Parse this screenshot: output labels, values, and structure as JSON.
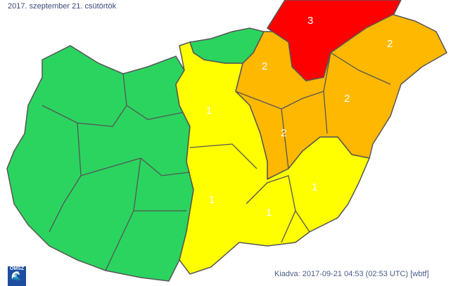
{
  "header": {
    "date": "2017. szeptember 21. csütörtök"
  },
  "footer": {
    "issued": "Kiadva: 2017-09-21 04:53 (02:53 UTC) [wbtf]",
    "logo_text": "OMSZ"
  },
  "colors": {
    "level0": "#2bd45f",
    "level1": "#ffff00",
    "level2": "#ffb800",
    "level3": "#ff0000",
    "border": "#555555"
  },
  "regions": [
    {
      "level": "3",
      "color": "level3"
    },
    {
      "level": "2",
      "color": "level2"
    },
    {
      "level": "2",
      "color": "level2"
    },
    {
      "level": "2",
      "color": "level2"
    },
    {
      "level": "2",
      "color": "level2"
    },
    {
      "level": "1",
      "color": "level1"
    },
    {
      "level": "1",
      "color": "level1"
    },
    {
      "level": "1",
      "color": "level1"
    },
    {
      "level": "1",
      "color": "level1"
    }
  ]
}
